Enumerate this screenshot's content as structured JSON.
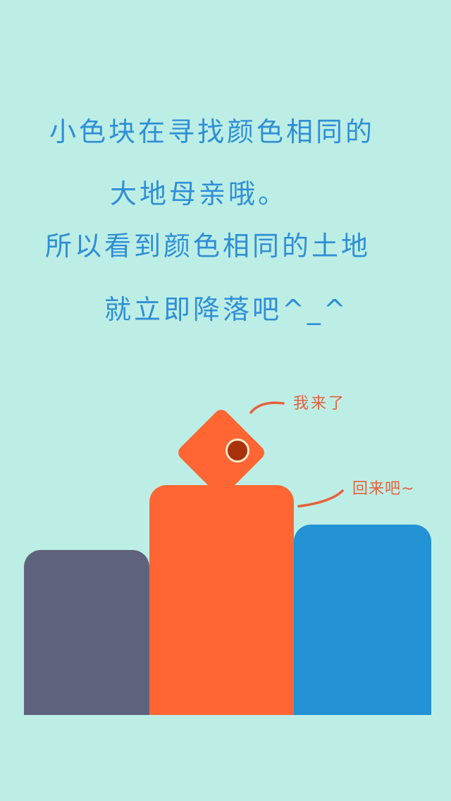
{
  "story": {
    "line1": "小色块在寻找颜色相同的",
    "line2": "大地母亲哦。",
    "line3": "所以看到颜色相同的土地",
    "line4": "就立即降落吧^_^"
  },
  "speech": {
    "block_says": "我来了",
    "land_says": "回来吧~"
  },
  "colors": {
    "background": "#bdeee6",
    "text": "#2f8fd6",
    "speech": "#e8603a",
    "column_slate": "#5f627c",
    "column_orange": "#ff6633",
    "column_blue": "#2292d4",
    "block": "#ff6633",
    "eye": "#a8320b"
  }
}
